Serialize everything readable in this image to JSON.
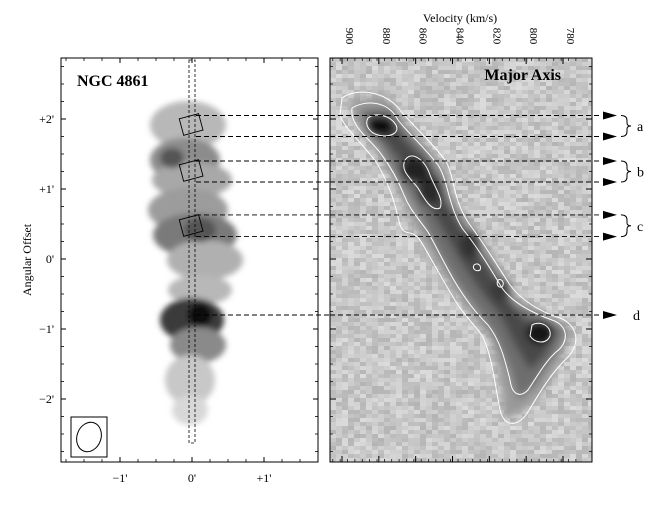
{
  "left_panel": {
    "title": "NGC 4861",
    "y_axis_label": "Angular Offset",
    "y_ticks": [
      {
        "label": "+2'",
        "value": 2
      },
      {
        "label": "+1'",
        "value": 1
      },
      {
        "label": "0'",
        "value": 0
      },
      {
        "label": "−1'",
        "value": -1
      },
      {
        "label": "−2'",
        "value": -2
      }
    ],
    "x_ticks": [
      {
        "label": "−1'",
        "value": -1
      },
      {
        "label": "0'",
        "value": 0
      },
      {
        "label": "+1'",
        "value": 1
      }
    ],
    "beam_icon": "ellipse-beam"
  },
  "right_panel": {
    "title": "Major Axis",
    "x_axis_label": "Velocity (km/s)",
    "x_ticks": [
      {
        "label": "900",
        "value": 900
      },
      {
        "label": "880",
        "value": 880
      },
      {
        "label": "860",
        "value": 860
      },
      {
        "label": "840",
        "value": 840
      },
      {
        "label": "820",
        "value": 820
      },
      {
        "label": "800",
        "value": 800
      },
      {
        "label": "780",
        "value": 780
      }
    ]
  },
  "region_markers": [
    {
      "label": "a",
      "offsets": [
        2.05,
        1.75
      ]
    },
    {
      "label": "b",
      "offsets": [
        1.4,
        1.1
      ]
    },
    {
      "label": "c",
      "offsets": [
        0.63,
        0.32
      ]
    },
    {
      "label": "d",
      "offsets": [
        -0.8
      ]
    }
  ],
  "colors": {
    "ink": "#000000",
    "panel_bg": "#ffffff",
    "contour": "#ffffff",
    "noise_bg": "#c8c8c8"
  }
}
